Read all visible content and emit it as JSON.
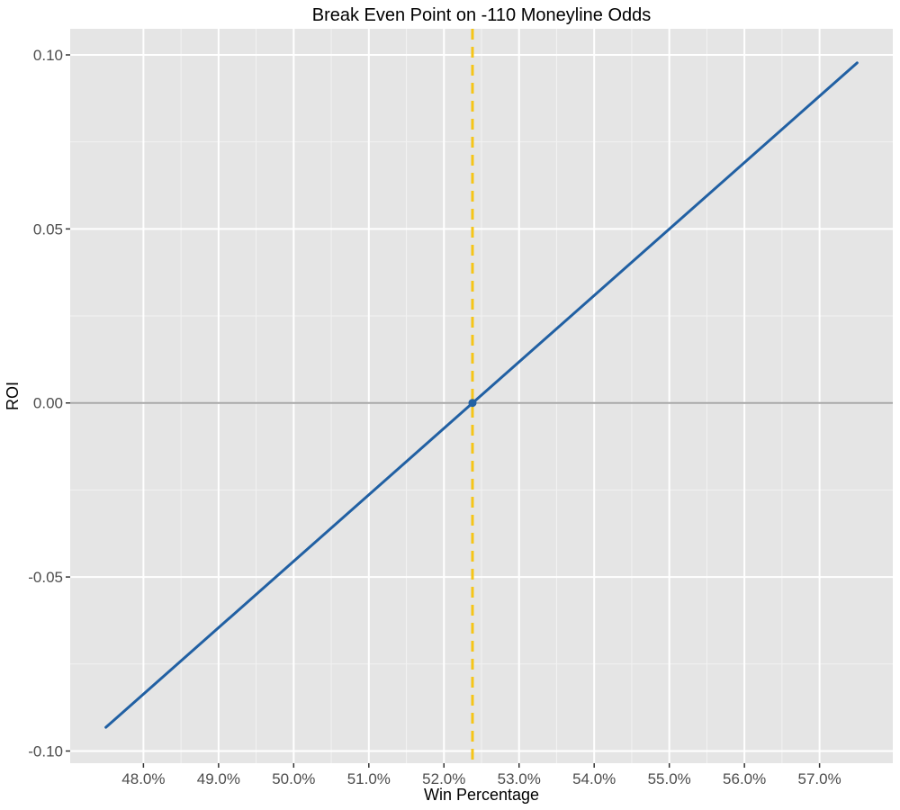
{
  "chart_data": {
    "type": "line",
    "title": "Break Even Point on -110 Moneyline Odds",
    "xlabel": "Win Percentage",
    "ylabel": "ROI",
    "xlim": [
      47.025,
      57.975
    ],
    "ylim": [
      -0.1035,
      0.1075
    ],
    "x_ticks": [
      48,
      49,
      50,
      51,
      52,
      53,
      54,
      55,
      56,
      57
    ],
    "x_tick_labels": [
      "48.0%",
      "49.0%",
      "50.0%",
      "51.0%",
      "52.0%",
      "53.0%",
      "54.0%",
      "55.0%",
      "56.0%",
      "57.0%"
    ],
    "y_ticks": [
      -0.1,
      -0.05,
      0.0,
      0.05,
      0.1
    ],
    "y_tick_labels": [
      "-0.10",
      "-0.05",
      "0.00",
      "0.05",
      "0.10"
    ],
    "grid": true,
    "series": [
      {
        "x": [
          47.5,
          57.5
        ],
        "y": [
          -0.0932,
          0.0977
        ],
        "color": "#2160a3"
      }
    ],
    "reference_lines": [
      {
        "orientation": "horizontal",
        "value": 0.0,
        "color": "#a6a6a6",
        "style": "solid"
      },
      {
        "orientation": "vertical",
        "value": 52.38,
        "color": "#f5c518",
        "style": "dashed"
      }
    ],
    "points": [
      {
        "x": 52.38,
        "y": 0.0,
        "color": "#2160a3"
      }
    ]
  },
  "colors": {
    "panel_background": "#e5e5e5",
    "grid_major": "#ffffff",
    "grid_minor": "#f2f2f2",
    "line": "#2160a3",
    "break_even": "#f5c518",
    "zero_line": "#a6a6a6"
  }
}
